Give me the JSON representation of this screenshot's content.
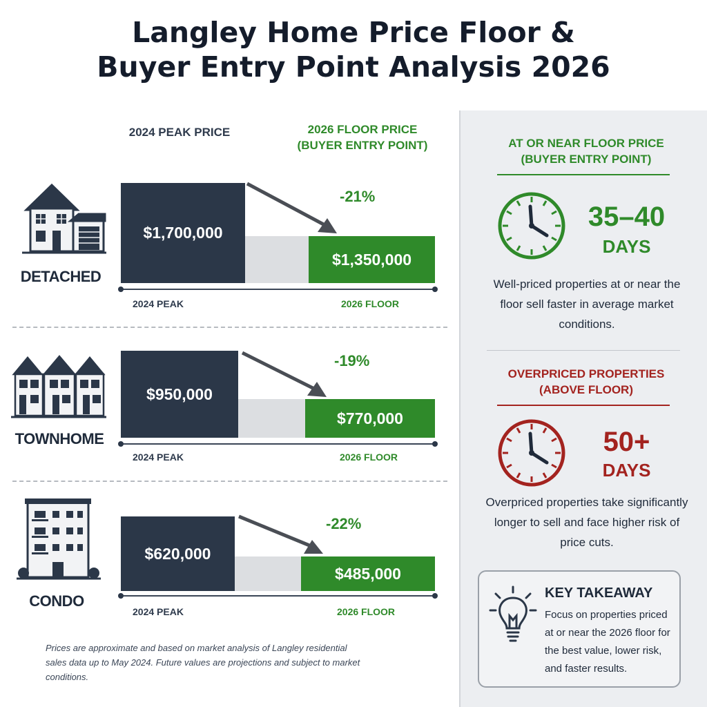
{
  "title": {
    "line1": "Langley Home Price Floor &",
    "line2": "Buyer Entry Point Analysis 2026"
  },
  "chart_data": {
    "type": "bar",
    "title": "Langley Home Price Floor & Buyer Entry Point Analysis 2026",
    "categories": [
      "DETACHED",
      "TOWNHOME",
      "CONDO"
    ],
    "series": [
      {
        "name": "2024 PEAK PRICE",
        "values": [
          1700000,
          950000,
          620000
        ],
        "labels": [
          "$1,700,000",
          "$950,000",
          "$620,000"
        ]
      },
      {
        "name": "2026 FLOOR PRICE (BUYER ENTRY POINT)",
        "values": [
          1350000,
          770000,
          485000
        ],
        "labels": [
          "$1,350,000",
          "$770,000",
          "$485,000"
        ]
      }
    ],
    "changes": [
      "-21%",
      "-19%",
      "-22%"
    ],
    "axis_start_label": "2024 PEAK",
    "axis_end_label": "2026 FLOOR",
    "colors": {
      "peak": "#2b3748",
      "floor": "#2f8a2a",
      "gap": "#dcdee1"
    }
  },
  "headers": {
    "peak": "2024 PEAK PRICE",
    "floor_line1": "2026 FLOOR PRICE",
    "floor_line2": "(BUYER ENTRY POINT)"
  },
  "icons": {
    "detached": "detached-house-icon",
    "townhome": "townhouse-icon",
    "condo": "condo-building-icon",
    "clock": "clock-icon",
    "bulb": "lightbulb-icon"
  },
  "note": "Prices are approximate and based on market analysis of Langley residential sales data up to May 2024. Future values are projections and subject to market conditions.",
  "right": {
    "floor": {
      "header_line1": "AT OR NEAR FLOOR PRICE",
      "header_line2": "(BUYER ENTRY POINT)",
      "days_value": "35–40",
      "days_unit": "DAYS",
      "description": "Well-priced properties at or near the floor sell faster in average market conditions.",
      "color": "#2f8a2a"
    },
    "over": {
      "header_line1": "OVERPRICED PROPERTIES",
      "header_line2": "(ABOVE FLOOR)",
      "days_value": "50+",
      "days_unit": "DAYS",
      "description": "Overpriced properties take significantly longer to sell and face higher risk of price cuts.",
      "color": "#a3231f"
    },
    "takeaway": {
      "title": "KEY TAKEAWAY",
      "text": "Focus on properties priced at or near the 2026 floor for the best value, lower risk, and faster results."
    }
  }
}
